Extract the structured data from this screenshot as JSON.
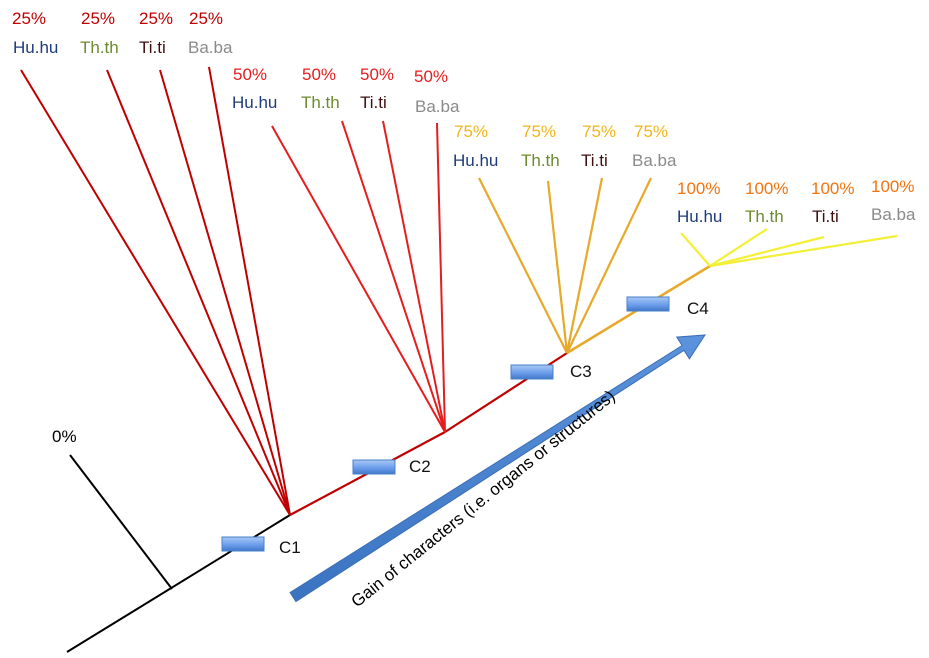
{
  "colors": {
    "stem": "#000000",
    "group1": "#c00000",
    "group2": "#e41e1e",
    "group3": "#f2b51a",
    "group3_line": "#e8a82a",
    "group4": "#f2740f",
    "group4_line": "#f3ef36",
    "Hu.hu": "#1f3c7a",
    "Th.th": "#6e8a2f",
    "Ti.ti": "#3d0f0f",
    "Ba.ba": "#8a8a8a",
    "marker": "#6d9eeb",
    "arrow": "#4a86d4"
  },
  "root": {
    "percent": "0%"
  },
  "species": [
    "Hu.hu",
    "Th.th",
    "Ti.ti",
    "Ba.ba"
  ],
  "groups": [
    {
      "percent": "25%",
      "species": [
        "Hu.hu",
        "Th.th",
        "Ti.ti",
        "Ba.ba"
      ]
    },
    {
      "percent": "50%",
      "species": [
        "Hu.hu",
        "Th.th",
        "Ti.ti",
        "Ba.ba"
      ]
    },
    {
      "percent": "75%",
      "species": [
        "Hu.hu",
        "Th.th",
        "Ti.ti",
        "Ba.ba"
      ]
    },
    {
      "percent": "100%",
      "species": [
        "Hu.hu",
        "Th.th",
        "Ti.ti",
        "Ba.ba"
      ]
    }
  ],
  "characters": [
    {
      "label": "C1"
    },
    {
      "label": "C2"
    },
    {
      "label": "C3"
    },
    {
      "label": "C4"
    }
  ],
  "arrow": {
    "label": "Gain of characters (i.e. organs or structures)"
  }
}
